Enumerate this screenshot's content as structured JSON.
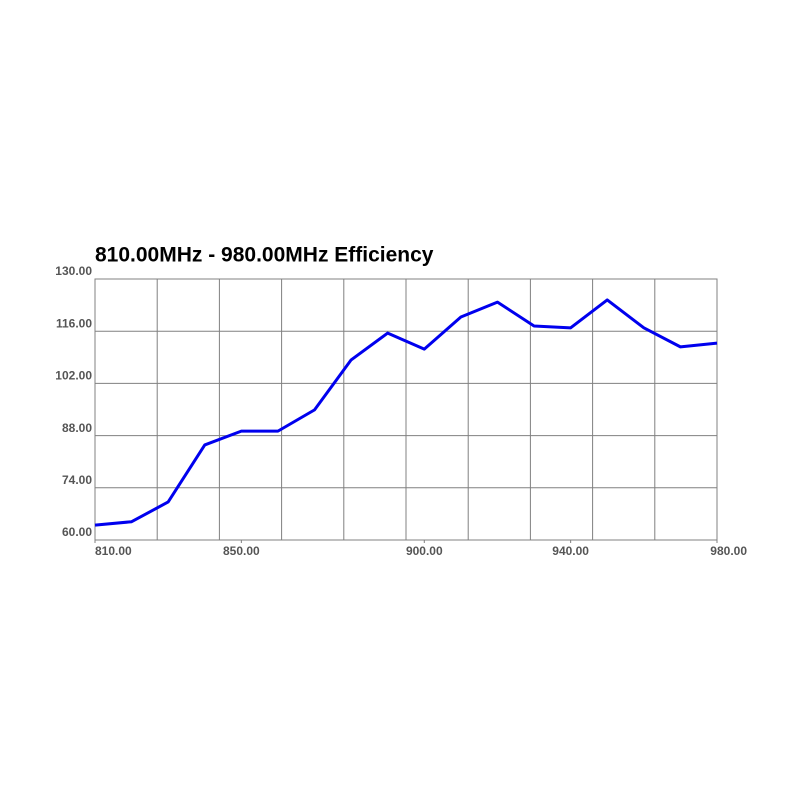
{
  "chart_data": {
    "type": "line",
    "title": "810.00MHz - 980.00MHz Efficiency",
    "x": [
      810,
      820,
      830,
      840,
      850,
      860,
      870,
      880,
      890,
      900,
      910,
      920,
      930,
      940,
      950,
      960,
      970,
      980
    ],
    "series": [
      {
        "name": "Efficiency",
        "color": "#0000ee",
        "values": [
          64.0,
          64.9,
          70.2,
          85.5,
          89.2,
          89.2,
          94.9,
          108.3,
          115.5,
          111.2,
          119.8,
          123.8,
          117.4,
          116.9,
          124.4,
          116.9,
          111.8,
          112.8
        ]
      }
    ],
    "xlim": [
      810,
      980
    ],
    "xticks": [
      {
        "value": 810,
        "label": "810.00"
      },
      {
        "value": 850,
        "label": "850.00"
      },
      {
        "value": 900,
        "label": "900.00"
      },
      {
        "value": 940,
        "label": "940.00"
      },
      {
        "value": 980,
        "label": "980.00"
      }
    ],
    "ylim": [
      60,
      130
    ],
    "yticks": [
      {
        "value": 60,
        "label": "60.00"
      },
      {
        "value": 74,
        "label": "74.00"
      },
      {
        "value": 88,
        "label": "88.00"
      },
      {
        "value": 102,
        "label": "102.00"
      },
      {
        "value": 116,
        "label": "116.00"
      },
      {
        "value": 130,
        "label": "130.00"
      }
    ],
    "grid": true
  }
}
